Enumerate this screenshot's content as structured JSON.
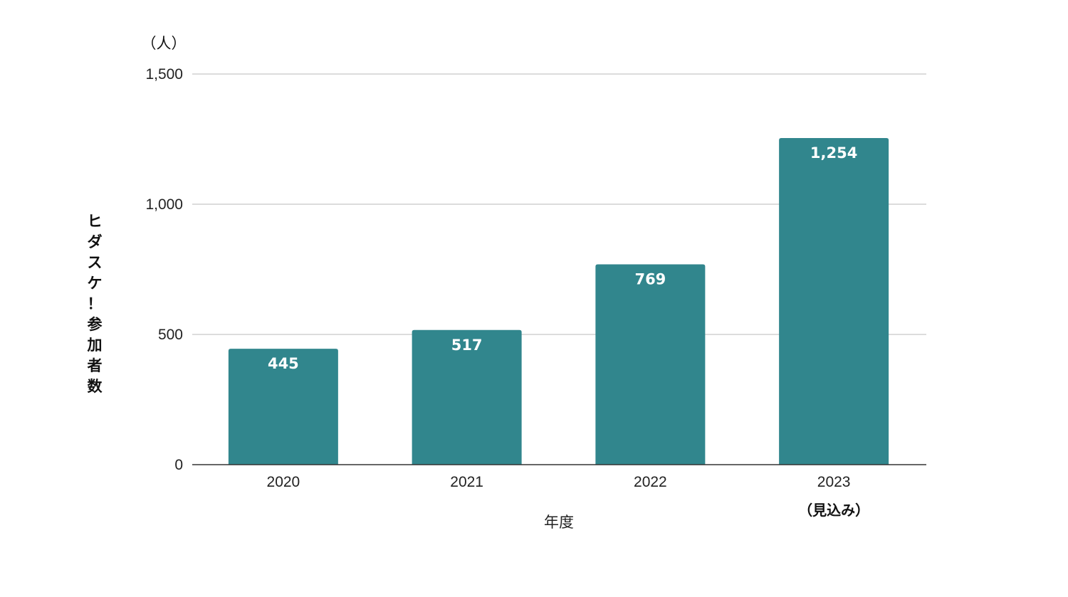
{
  "chart_data": {
    "type": "bar",
    "categories": [
      "2020",
      "2021",
      "2022",
      "2023"
    ],
    "category_notes": [
      "",
      "",
      "",
      "（見込み）"
    ],
    "values": [
      445,
      517,
      769,
      1254
    ],
    "value_labels": [
      "445",
      "517",
      "769",
      "1,254"
    ],
    "ylabel": "ヒダスケ！参加者数",
    "yunit": "（人）",
    "xlabel": "年度",
    "ylim": [
      0,
      1500
    ],
    "yticks": [
      0,
      500,
      1000,
      1500
    ],
    "ytick_labels": [
      "0",
      "500",
      "1,000",
      "1,500"
    ],
    "grid": true,
    "legend": "none",
    "bar_color": "#31868d"
  }
}
